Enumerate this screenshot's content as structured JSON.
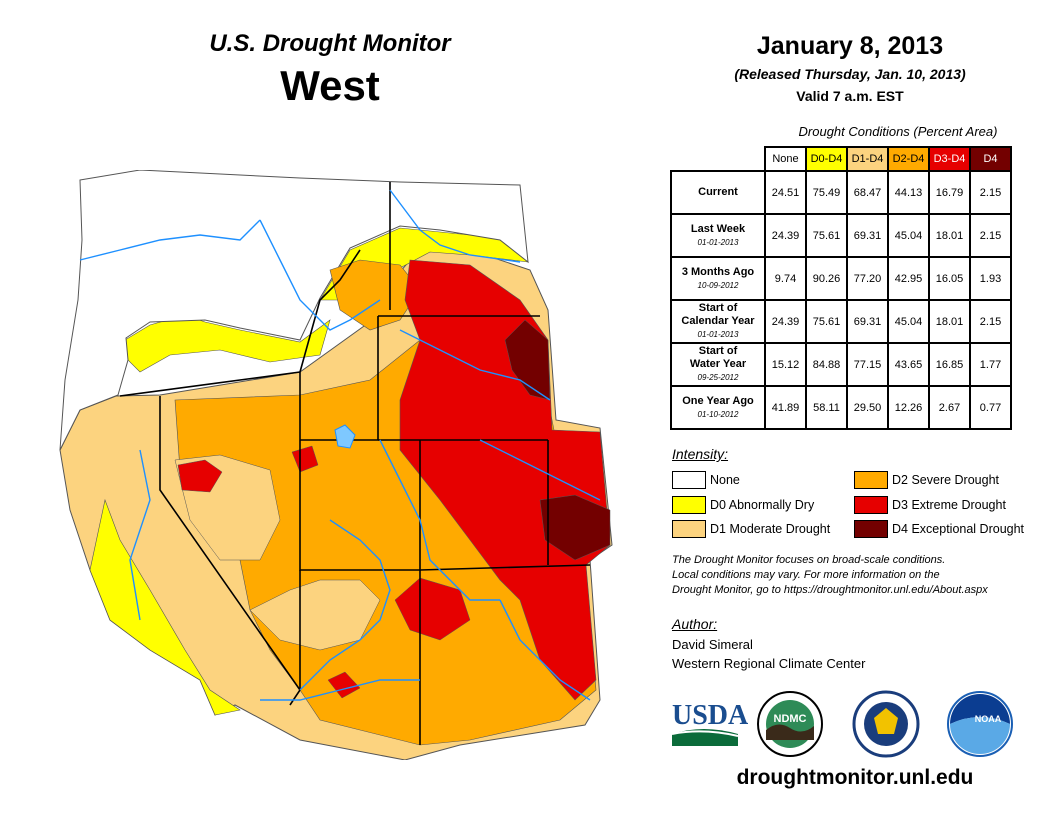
{
  "header": {
    "monitor_title": "U.S. Drought Monitor",
    "region": "West",
    "date": "January 8, 2013",
    "released": "(Released Thursday, Jan. 10, 2013)",
    "valid": "Valid 7 a.m. EST"
  },
  "conditions": {
    "title": "Drought Conditions (Percent Area)",
    "columns": [
      "None",
      "D0-D4",
      "D1-D4",
      "D2-D4",
      "D3-D4",
      "D4"
    ],
    "rows": [
      {
        "label": "Current",
        "date": "",
        "values": [
          "24.51",
          "75.49",
          "68.47",
          "44.13",
          "16.79",
          "2.15"
        ]
      },
      {
        "label": "Last Week",
        "date": "01-01-2013",
        "values": [
          "24.39",
          "75.61",
          "69.31",
          "45.04",
          "18.01",
          "2.15"
        ]
      },
      {
        "label": "3 Months Ago",
        "date": "10-09-2012",
        "values": [
          "9.74",
          "90.26",
          "77.20",
          "42.95",
          "16.05",
          "1.93"
        ]
      },
      {
        "label_line1": "Start of",
        "label_line2": "Calendar Year",
        "date": "01-01-2013",
        "values": [
          "24.39",
          "75.61",
          "69.31",
          "45.04",
          "18.01",
          "2.15"
        ]
      },
      {
        "label_line1": "Start of",
        "label_line2": "Water Year",
        "date": "09-25-2012",
        "values": [
          "15.12",
          "84.88",
          "77.15",
          "43.65",
          "16.85",
          "1.77"
        ]
      },
      {
        "label": "One Year Ago",
        "date": "01-10-2012",
        "values": [
          "41.89",
          "58.11",
          "29.50",
          "12.26",
          "2.67",
          "0.77"
        ]
      }
    ]
  },
  "legend": {
    "title": "Intensity:",
    "items": [
      {
        "label": "None",
        "color": "#ffffff"
      },
      {
        "label": "D0 Abnormally Dry",
        "color": "#ffff00"
      },
      {
        "label": "D1 Moderate Drought",
        "color": "#fcd37f"
      },
      {
        "label": "D2 Severe Drought",
        "color": "#ffaa00"
      },
      {
        "label": "D3 Extreme Drought",
        "color": "#e60000"
      },
      {
        "label": "D4 Exceptional Drought",
        "color": "#730000"
      }
    ]
  },
  "note": {
    "line1": "The Drought Monitor focuses on broad-scale conditions.",
    "line2": "Local conditions may vary. For more information on the",
    "line3": "Drought Monitor, go to https://droughtmonitor.unl.edu/About.aspx"
  },
  "author": {
    "title": "Author:",
    "name": "David Simeral",
    "org": "Western Regional Climate Center"
  },
  "logos": {
    "usda": "USDA",
    "ndmc": "NDMC",
    "noaa": "NOAA"
  },
  "website": "droughtmonitor.unl.edu"
}
